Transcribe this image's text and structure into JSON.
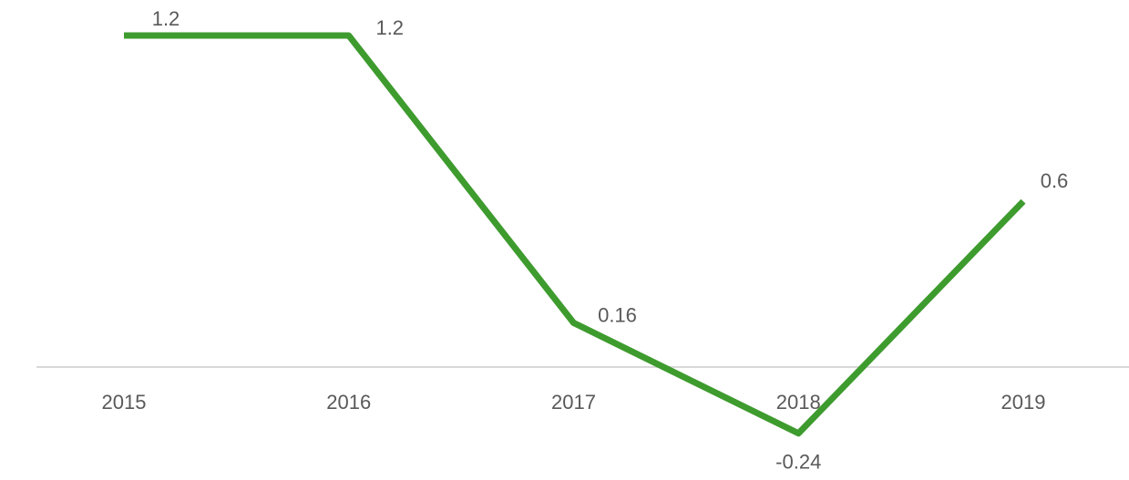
{
  "chart_data": {
    "type": "line",
    "categories": [
      "2015",
      "2016",
      "2017",
      "2018",
      "2019"
    ],
    "values": [
      1.2,
      1.2,
      0.16,
      -0.24,
      0.6
    ],
    "color": "#3e9b2e",
    "ylim": [
      -0.4,
      1.3
    ]
  }
}
